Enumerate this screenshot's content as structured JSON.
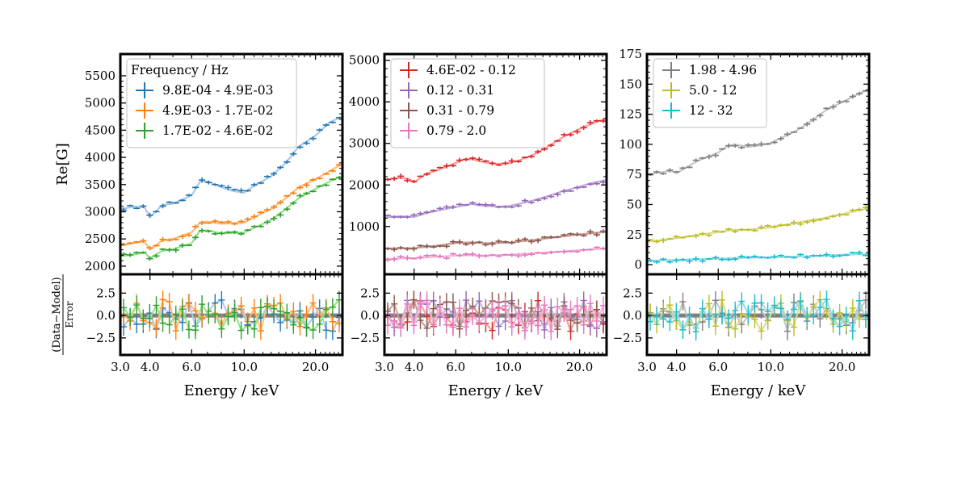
{
  "chart_data": [
    {
      "id": "p1",
      "type": "line",
      "legend_title": "Frequency / Hz",
      "legend_position": "top-left",
      "ylabel": "Re[G]",
      "xlabel": "Energy / keV",
      "xscale": "log",
      "xlim": [
        3.0,
        26.0
      ],
      "ylim": [
        1850,
        5900
      ],
      "xticks": [
        3.0,
        4.0,
        6.0,
        10.0,
        20.0
      ],
      "xtick_labels": [
        "3.0",
        "4.0",
        "6.0",
        "10.0",
        "20.0"
      ],
      "yticks": [
        2000,
        2500,
        3000,
        3500,
        4000,
        4500,
        5000,
        5500
      ],
      "ytick_labels": [
        "2000",
        "2500",
        "3000",
        "3500",
        "4000",
        "4500",
        "5000",
        "5500"
      ],
      "residual_ylabel_num": "(Data−Model)",
      "residual_ylabel_den": "Error",
      "residual_ylim": [
        -4.4,
        4.6
      ],
      "residual_yticks": [
        -2.5,
        0.0,
        2.5
      ],
      "residual_ytick_labels": [
        "−2.5",
        "0.0",
        "2.5"
      ],
      "series": [
        {
          "name": "9.8E-04 - 4.9E-03",
          "color": "#1f77b4",
          "model_color": "#aec7e8",
          "x": [
            3.0,
            3.5,
            3.8,
            4.0,
            4.5,
            5.0,
            6.0,
            6.5,
            7.0,
            8.0,
            9.0,
            10.0,
            11.0,
            13.0,
            15.0,
            17.0,
            20.0,
            23.0,
            26.0
          ],
          "y": [
            3050,
            3100,
            3080,
            2900,
            3120,
            3150,
            3300,
            3550,
            3560,
            3450,
            3380,
            3350,
            3480,
            3650,
            3900,
            4200,
            4400,
            4650,
            4750
          ]
        },
        {
          "name": "4.9E-03 - 1.7E-02",
          "color": "#ff7f0e",
          "model_color": "#ffbb78",
          "x": [
            3.0,
            3.5,
            3.8,
            4.0,
            4.5,
            5.0,
            6.0,
            6.5,
            7.0,
            8.0,
            9.0,
            10.0,
            11.0,
            13.0,
            15.0,
            17.0,
            20.0,
            23.0,
            26.0
          ],
          "y": [
            2380,
            2430,
            2450,
            2300,
            2470,
            2500,
            2620,
            2800,
            2820,
            2780,
            2790,
            2800,
            2900,
            3050,
            3250,
            3450,
            3600,
            3750,
            3880
          ]
        },
        {
          "name": "1.7E-02 - 4.6E-02",
          "color": "#2ca02c",
          "model_color": "#98df8a",
          "x": [
            3.0,
            3.5,
            3.8,
            4.0,
            4.5,
            5.0,
            6.0,
            6.5,
            7.0,
            8.0,
            9.0,
            10.0,
            11.0,
            13.0,
            15.0,
            17.0,
            20.0,
            23.0,
            26.0
          ],
          "y": [
            2180,
            2220,
            2250,
            2150,
            2280,
            2310,
            2420,
            2650,
            2660,
            2600,
            2610,
            2620,
            2700,
            2850,
            3050,
            3250,
            3420,
            3560,
            3660
          ]
        }
      ]
    },
    {
      "id": "p2",
      "type": "line",
      "legend_position": "top-left",
      "xlabel": "Energy / keV",
      "xscale": "log",
      "xlim": [
        3.0,
        26.0
      ],
      "ylim": [
        -150,
        5150
      ],
      "xticks": [
        3.0,
        4.0,
        6.0,
        10.0,
        20.0
      ],
      "xtick_labels": [
        "3.0",
        "4.0",
        "6.0",
        "10.0",
        "20.0"
      ],
      "yticks": [
        1000,
        2000,
        3000,
        4000,
        5000
      ],
      "ytick_labels": [
        "1000",
        "2000",
        "3000",
        "4000",
        "5000"
      ],
      "residual_ylim": [
        -4.4,
        4.6
      ],
      "residual_yticks": [
        -2.5,
        0.0,
        2.5
      ],
      "residual_ytick_labels": [
        "−2.5",
        "0.0",
        "2.5"
      ],
      "series": [
        {
          "name": "4.6E-02 - 0.12",
          "color": "#d62728",
          "model_color": "#ff9896",
          "x": [
            3.0,
            3.5,
            3.8,
            4.0,
            4.5,
            5.0,
            6.0,
            6.5,
            7.0,
            8.0,
            9.0,
            10.0,
            11.0,
            13.0,
            15.0,
            17.0,
            20.0,
            23.0,
            26.0
          ],
          "y": [
            2130,
            2170,
            2150,
            2060,
            2270,
            2350,
            2530,
            2620,
            2620,
            2540,
            2510,
            2520,
            2580,
            2750,
            2950,
            3150,
            3350,
            3500,
            3600
          ]
        },
        {
          "name": "0.12 - 0.31",
          "color": "#9467bd",
          "model_color": "#c5b0d5",
          "x": [
            3.0,
            3.5,
            4.0,
            4.5,
            5.0,
            6.0,
            7.0,
            8.0,
            9.0,
            10.0,
            11.0,
            13.0,
            15.0,
            17.0,
            20.0,
            23.0,
            26.0
          ],
          "y": [
            1220,
            1250,
            1230,
            1320,
            1380,
            1470,
            1540,
            1490,
            1480,
            1490,
            1540,
            1640,
            1750,
            1850,
            1960,
            2060,
            2120
          ]
        },
        {
          "name": "0.31 - 0.79",
          "color": "#8c564b",
          "model_color": "#c49c94",
          "x": [
            3.0,
            4.0,
            5.0,
            6.0,
            7.0,
            8.0,
            10.0,
            13.0,
            17.0,
            20.0,
            26.0
          ],
          "y": [
            470,
            480,
            540,
            600,
            620,
            600,
            610,
            680,
            760,
            810,
            870
          ]
        },
        {
          "name": "0.79 - 2.0",
          "color": "#e377c2",
          "model_color": "#f7b6d2",
          "x": [
            3.0,
            4.0,
            5.0,
            6.0,
            7.0,
            8.0,
            10.0,
            13.0,
            17.0,
            20.0,
            26.0
          ],
          "y": [
            220,
            240,
            270,
            300,
            310,
            300,
            320,
            360,
            400,
            430,
            470
          ]
        }
      ]
    },
    {
      "id": "p3",
      "type": "line",
      "legend_position": "top-left",
      "xlabel": "Energy / keV",
      "xscale": "log",
      "xlim": [
        3.0,
        26.0
      ],
      "ylim": [
        -8,
        175
      ],
      "xticks": [
        3.0,
        4.0,
        6.0,
        10.0,
        20.0
      ],
      "xtick_labels": [
        "3.0",
        "4.0",
        "6.0",
        "10.0",
        "20.0"
      ],
      "yticks": [
        0,
        25,
        50,
        75,
        100,
        125,
        150,
        175
      ],
      "ytick_labels": [
        "0",
        "25",
        "50",
        "75",
        "100",
        "125",
        "150",
        "175"
      ],
      "residual_ylim": [
        -4.4,
        4.6
      ],
      "residual_yticks": [
        -2.5,
        0.0,
        2.5
      ],
      "residual_ytick_labels": [
        "−2.5",
        "0.0",
        "2.5"
      ],
      "series": [
        {
          "name": "1.98 - 4.96",
          "color": "#7f7f7f",
          "model_color": "#c7c7c7",
          "x": [
            3.0,
            3.5,
            3.8,
            4.0,
            4.5,
            5.0,
            6.0,
            6.5,
            7.0,
            8.0,
            9.0,
            10.0,
            11.0,
            13.0,
            15.0,
            17.0,
            20.0,
            23.0,
            26.0
          ],
          "y": [
            75,
            77,
            78,
            76,
            82,
            87,
            93,
            98,
            100,
            98,
            99,
            101,
            105,
            112,
            120,
            128,
            135,
            141,
            146
          ]
        },
        {
          "name": "5.0 - 12",
          "color": "#bcbd22",
          "model_color": "#dbdb8d",
          "x": [
            3.0,
            4.0,
            5.0,
            6.0,
            7.0,
            8.0,
            10.0,
            13.0,
            17.0,
            20.0,
            26.0
          ],
          "y": [
            19,
            22,
            25,
            27,
            29,
            29,
            31,
            35,
            39,
            42,
            47
          ]
        },
        {
          "name": "12 - 32",
          "color": "#17becf",
          "model_color": "#9edae5",
          "x": [
            3.0,
            4.0,
            5.0,
            6.0,
            7.0,
            8.0,
            10.0,
            13.0,
            17.0,
            20.0,
            26.0
          ],
          "y": [
            3,
            4,
            4.5,
            5,
            5.5,
            5.8,
            6,
            6.8,
            7.5,
            8.2,
            9
          ]
        }
      ]
    }
  ]
}
